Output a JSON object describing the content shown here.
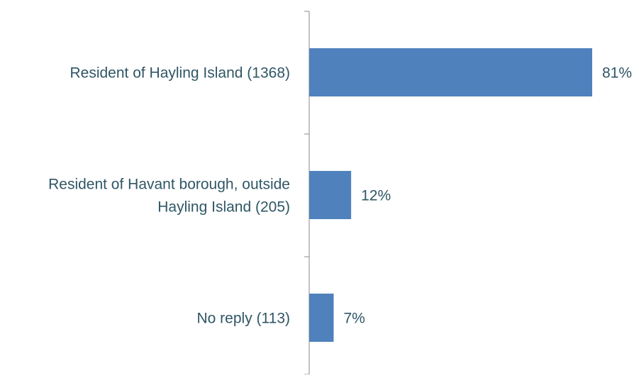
{
  "chart_data": {
    "type": "bar",
    "orientation": "horizontal",
    "categories": [
      [
        "Resident of Hayling Island (1368)"
      ],
      [
        "Resident of Havant borough, outside",
        "Hayling Island (205)"
      ],
      [
        "No reply (113)"
      ]
    ],
    "values": [
      81,
      12,
      7
    ],
    "data_labels": [
      "81%",
      "12%",
      "7%"
    ],
    "title": "",
    "xlabel": "",
    "ylabel": "",
    "xlim": [
      0,
      81
    ],
    "grid": false,
    "legend": "none"
  },
  "colors": {
    "bar": "#4F81BD",
    "text": "#2F5666",
    "axis": "#8A8A8A"
  }
}
